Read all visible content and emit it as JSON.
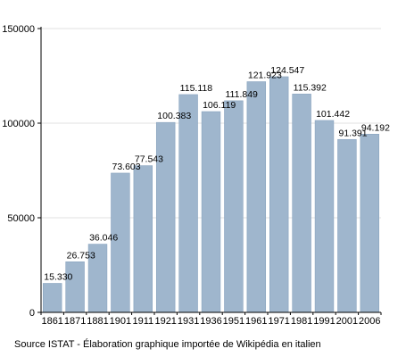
{
  "chart_data": {
    "type": "bar",
    "categories": [
      "1861",
      "1871",
      "1881",
      "1901",
      "1911",
      "1921",
      "1931",
      "1936",
      "1951",
      "1961",
      "1971",
      "1981",
      "1991",
      "2001",
      "2006"
    ],
    "values": [
      15330,
      26753,
      36046,
      73603,
      77543,
      100383,
      115118,
      106119,
      111849,
      121923,
      124547,
      115392,
      101442,
      91391,
      94192
    ],
    "data_labels": [
      "15.330",
      "26.753",
      "36.046",
      "73.603",
      "77.543",
      "100.383",
      "115.118",
      "106.119",
      "111.849",
      "121.923",
      "124.547",
      "115.392",
      "101.442",
      "91.391",
      "94.192"
    ],
    "yticks": [
      0,
      50000,
      100000,
      150000
    ],
    "ytick_labels": [
      "0",
      "50000",
      "100000",
      "150000"
    ],
    "ylim": [
      0,
      150000
    ],
    "grid": true,
    "bar_color": "#9fb6cd",
    "bar_edge_color": "#8aa4bf",
    "grid_color": "#e0e0e0",
    "source": "Source ISTAT - Élaboration graphique importée de Wikipédia en italien"
  }
}
